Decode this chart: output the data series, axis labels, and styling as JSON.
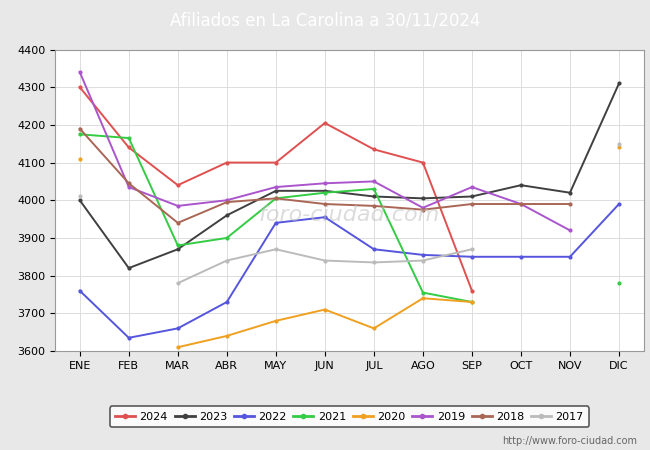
{
  "title": "Afiliados en La Carolina a 30/11/2024",
  "title_bg_color": "#4f86c6",
  "title_text_color": "white",
  "ylim": [
    3600,
    4400
  ],
  "xlim": [
    -0.5,
    11.5
  ],
  "months": [
    "ENE",
    "FEB",
    "MAR",
    "ABR",
    "MAY",
    "JUN",
    "JUL",
    "AGO",
    "SEP",
    "OCT",
    "NOV",
    "DIC"
  ],
  "yticks": [
    3600,
    3700,
    3800,
    3900,
    4000,
    4100,
    4200,
    4300,
    4400
  ],
  "watermark": "foro-ciudad.com",
  "url": "http://www.foro-ciudad.com",
  "series": [
    {
      "label": "2024",
      "color": "#e05050",
      "values": [
        4300,
        4140,
        4040,
        4100,
        4100,
        4205,
        4135,
        4100,
        3760,
        null,
        null,
        null
      ]
    },
    {
      "label": "2023",
      "color": "#404040",
      "values": [
        4000,
        3820,
        3870,
        3960,
        4025,
        4025,
        4010,
        4005,
        4010,
        4040,
        4020,
        4310
      ]
    },
    {
      "label": "2022",
      "color": "#5555dd",
      "values": [
        3760,
        3635,
        3660,
        3730,
        3940,
        3955,
        3870,
        3855,
        3850,
        3850,
        3850,
        3990
      ]
    },
    {
      "label": "2021",
      "color": "#33cc44",
      "values": [
        4175,
        4165,
        3880,
        3900,
        4005,
        4020,
        4030,
        3755,
        3730,
        null,
        null,
        3780
      ]
    },
    {
      "label": "2020",
      "color": "#f0a020",
      "values": [
        4110,
        null,
        3610,
        3640,
        3680,
        3710,
        3660,
        3740,
        3730,
        null,
        null,
        4140
      ]
    },
    {
      "label": "2019",
      "color": "#aa55cc",
      "values": [
        4340,
        4035,
        3985,
        4000,
        4035,
        4045,
        4050,
        3980,
        4035,
        3990,
        3920,
        null
      ]
    },
    {
      "label": "2018",
      "color": "#aa6655",
      "values": [
        4190,
        4045,
        3940,
        3995,
        4005,
        3990,
        3985,
        3975,
        3990,
        3990,
        3990,
        null
      ]
    },
    {
      "label": "2017",
      "color": "#bbbbbb",
      "values": [
        4010,
        null,
        3780,
        3840,
        3870,
        3840,
        3835,
        3840,
        3870,
        null,
        null,
        4150
      ]
    }
  ],
  "grid_color": "#dddddd",
  "outer_bg_color": "#e8e8e8",
  "plot_bg_color": "#ffffff",
  "legend_border_color": "#333333",
  "title_fontsize": 12,
  "tick_fontsize": 8,
  "url_fontsize": 7,
  "line_width": 1.4,
  "marker_size": 3
}
